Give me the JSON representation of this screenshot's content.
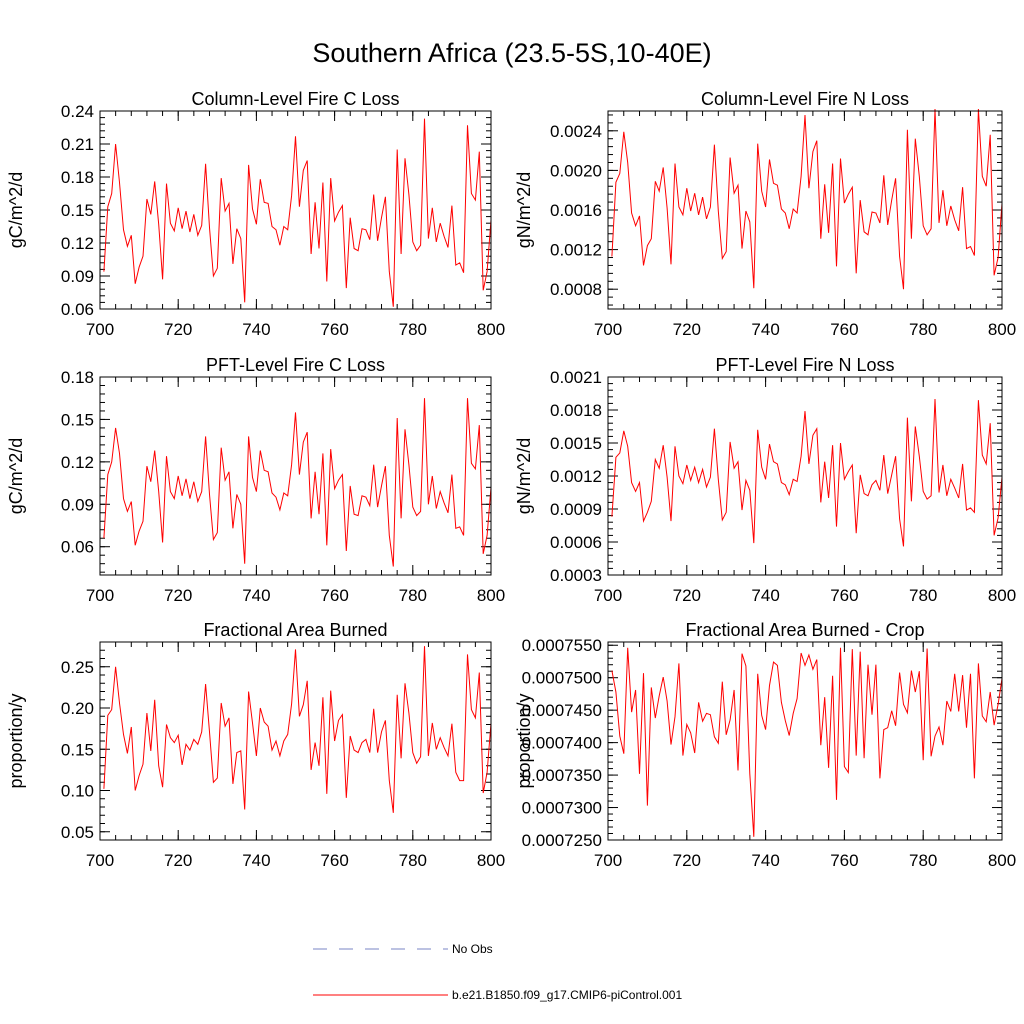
{
  "figure": {
    "title": "Southern Africa (23.5-5S,10-40E)",
    "colors": {
      "model": "#ff0000",
      "obs": "#7a86c6",
      "frame": "#000000"
    }
  },
  "chart_data": [
    {
      "type": "line",
      "title": "Column-Level Fire C Loss",
      "xlabel": "",
      "ylabel": "gC/m^2/d",
      "xlim": [
        700,
        800
      ],
      "ylim": [
        0.06,
        0.24
      ],
      "xticks": [
        700,
        720,
        740,
        760,
        780,
        800
      ],
      "xtick_labels": [
        "700",
        "720",
        "740",
        "760",
        "780",
        "800"
      ],
      "yticks": [
        0.06,
        0.09,
        0.12,
        0.15,
        0.18,
        0.21,
        0.24
      ],
      "ytick_labels": [
        "0.06",
        "0.09",
        "0.12",
        "0.15",
        "0.18",
        "0.21",
        "0.24"
      ],
      "x_start": 701,
      "x_step": 1,
      "series": [
        {
          "name": "b.e21.B1850.f09_g17.CMIP6-piControl.001",
          "values": [
            0.094,
            0.153,
            0.165,
            0.21,
            0.175,
            0.132,
            0.117,
            0.127,
            0.083,
            0.098,
            0.108,
            0.16,
            0.146,
            0.176,
            0.137,
            0.087,
            0.174,
            0.138,
            0.131,
            0.152,
            0.133,
            0.149,
            0.13,
            0.146,
            0.127,
            0.136,
            0.192,
            0.134,
            0.09,
            0.097,
            0.179,
            0.149,
            0.156,
            0.101,
            0.133,
            0.124,
            0.066,
            0.191,
            0.151,
            0.137,
            0.178,
            0.157,
            0.156,
            0.135,
            0.132,
            0.118,
            0.135,
            0.132,
            0.163,
            0.217,
            0.153,
            0.186,
            0.195,
            0.11,
            0.157,
            0.115,
            0.175,
            0.085,
            0.179,
            0.14,
            0.148,
            0.154,
            0.079,
            0.143,
            0.115,
            0.113,
            0.133,
            0.132,
            0.123,
            0.164,
            0.122,
            0.143,
            0.162,
            0.094,
            0.062,
            0.205,
            0.11,
            0.197,
            0.164,
            0.121,
            0.113,
            0.118,
            0.233,
            0.124,
            0.152,
            0.121,
            0.138,
            0.126,
            0.116,
            0.154,
            0.1,
            0.102,
            0.093,
            0.227,
            0.165,
            0.159,
            0.203,
            0.077,
            0.094,
            0.141
          ]
        }
      ]
    },
    {
      "type": "line",
      "title": "Column-Level Fire N Loss",
      "xlabel": "",
      "ylabel": "gN/m^2/d",
      "xlim": [
        700,
        800
      ],
      "ylim": [
        0.0006,
        0.0026
      ],
      "xticks": [
        700,
        720,
        740,
        760,
        780,
        800
      ],
      "xtick_labels": [
        "700",
        "720",
        "740",
        "760",
        "780",
        "800"
      ],
      "yticks": [
        0.0008,
        0.0012,
        0.0016,
        0.002,
        0.0024
      ],
      "ytick_labels": [
        "0.0008",
        "0.0012",
        "0.0016",
        "0.0020",
        "0.0024"
      ],
      "x_start": 701,
      "x_step": 1,
      "series": [
        {
          "name": "b.e21.B1850.f09_g17.CMIP6-piControl.001",
          "values": [
            0.00113,
            0.00188,
            0.00197,
            0.00239,
            0.00208,
            0.00157,
            0.00144,
            0.00154,
            0.00104,
            0.00124,
            0.00131,
            0.00189,
            0.00179,
            0.00203,
            0.00162,
            0.00105,
            0.00207,
            0.00163,
            0.00155,
            0.00182,
            0.00159,
            0.00177,
            0.00155,
            0.00173,
            0.00151,
            0.00163,
            0.00226,
            0.00159,
            0.00111,
            0.00118,
            0.00213,
            0.00177,
            0.00185,
            0.00121,
            0.00159,
            0.00148,
            0.00081,
            0.00227,
            0.00179,
            0.00163,
            0.00211,
            0.00187,
            0.00185,
            0.00161,
            0.00157,
            0.00141,
            0.00161,
            0.00157,
            0.00194,
            0.00256,
            0.00182,
            0.00219,
            0.0023,
            0.00131,
            0.00186,
            0.00137,
            0.00207,
            0.00103,
            0.00212,
            0.00167,
            0.00176,
            0.00183,
            0.00096,
            0.0017,
            0.00138,
            0.00135,
            0.00158,
            0.00157,
            0.00147,
            0.00195,
            0.00145,
            0.0017,
            0.00192,
            0.00113,
            0.0008,
            0.00241,
            0.00131,
            0.00232,
            0.00194,
            0.00144,
            0.00135,
            0.00141,
            0.00262,
            0.00147,
            0.0018,
            0.00144,
            0.00164,
            0.0015,
            0.00139,
            0.00183,
            0.00121,
            0.00123,
            0.00114,
            0.00262,
            0.00194,
            0.00184,
            0.00236,
            0.00094,
            0.00112,
            0.00167
          ]
        }
      ]
    },
    {
      "type": "line",
      "title": "PFT-Level Fire C Loss",
      "xlabel": "",
      "ylabel": "gC/m^2/d",
      "xlim": [
        700,
        800
      ],
      "ylim": [
        0.04,
        0.18
      ],
      "xticks": [
        700,
        720,
        740,
        760,
        780,
        800
      ],
      "xtick_labels": [
        "700",
        "720",
        "740",
        "760",
        "780",
        "800"
      ],
      "yticks": [
        0.06,
        0.09,
        0.12,
        0.15,
        0.18
      ],
      "ytick_labels": [
        "0.06",
        "0.09",
        "0.12",
        "0.15",
        "0.18"
      ],
      "x_start": 701,
      "x_step": 1,
      "series": [
        {
          "name": "b.e21.B1850.f09_g17.CMIP6-piControl.001",
          "values": [
            0.066,
            0.111,
            0.12,
            0.144,
            0.126,
            0.094,
            0.085,
            0.092,
            0.061,
            0.071,
            0.078,
            0.117,
            0.106,
            0.128,
            0.099,
            0.063,
            0.124,
            0.099,
            0.094,
            0.11,
            0.096,
            0.108,
            0.094,
            0.106,
            0.092,
            0.099,
            0.138,
            0.097,
            0.065,
            0.07,
            0.13,
            0.107,
            0.113,
            0.073,
            0.097,
            0.09,
            0.048,
            0.138,
            0.109,
            0.099,
            0.128,
            0.114,
            0.113,
            0.098,
            0.095,
            0.086,
            0.098,
            0.096,
            0.118,
            0.155,
            0.111,
            0.134,
            0.141,
            0.08,
            0.113,
            0.083,
            0.126,
            0.061,
            0.129,
            0.101,
            0.107,
            0.111,
            0.057,
            0.103,
            0.083,
            0.082,
            0.096,
            0.095,
            0.089,
            0.118,
            0.088,
            0.103,
            0.117,
            0.068,
            0.046,
            0.151,
            0.08,
            0.143,
            0.118,
            0.088,
            0.082,
            0.085,
            0.165,
            0.09,
            0.11,
            0.087,
            0.099,
            0.091,
            0.084,
            0.111,
            0.073,
            0.074,
            0.068,
            0.165,
            0.119,
            0.115,
            0.146,
            0.055,
            0.068,
            0.102
          ]
        }
      ]
    },
    {
      "type": "line",
      "title": "PFT-Level Fire N Loss",
      "xlabel": "",
      "ylabel": "gN/m^2/d",
      "xlim": [
        700,
        800
      ],
      "ylim": [
        0.0003,
        0.0021
      ],
      "xticks": [
        700,
        720,
        740,
        760,
        780,
        800
      ],
      "xtick_labels": [
        "700",
        "720",
        "740",
        "760",
        "780",
        "800"
      ],
      "yticks": [
        0.0003,
        0.0006,
        0.0009,
        0.0012,
        0.0015,
        0.0018,
        0.0021
      ],
      "ytick_labels": [
        "0.0003",
        "0.0006",
        "0.0009",
        "0.0012",
        "0.0015",
        "0.0018",
        "0.0021"
      ],
      "x_start": 701,
      "x_step": 1,
      "series": [
        {
          "name": "b.e21.B1850.f09_g17.CMIP6-piControl.001",
          "values": [
            0.00083,
            0.00137,
            0.00141,
            0.00161,
            0.00147,
            0.00114,
            0.00106,
            0.00114,
            0.00079,
            0.00087,
            0.00097,
            0.00135,
            0.00127,
            0.00148,
            0.00119,
            0.00079,
            0.00147,
            0.0012,
            0.00113,
            0.0013,
            0.00116,
            0.00128,
            0.00114,
            0.00126,
            0.0011,
            0.00119,
            0.00163,
            0.00117,
            0.0008,
            0.00087,
            0.00151,
            0.00127,
            0.00133,
            0.00089,
            0.00116,
            0.00107,
            0.00059,
            0.00162,
            0.00128,
            0.00117,
            0.00149,
            0.00133,
            0.00131,
            0.00114,
            0.00112,
            0.00103,
            0.00117,
            0.00115,
            0.00138,
            0.00179,
            0.00131,
            0.00157,
            0.00163,
            0.00096,
            0.00133,
            0.001,
            0.00148,
            0.00074,
            0.0015,
            0.00117,
            0.00124,
            0.0013,
            0.00068,
            0.00121,
            0.00104,
            0.00102,
            0.00112,
            0.00116,
            0.00107,
            0.00139,
            0.00104,
            0.00121,
            0.00138,
            0.00081,
            0.00056,
            0.00173,
            0.00097,
            0.00165,
            0.00138,
            0.00106,
            0.00099,
            0.00102,
            0.0019,
            0.00105,
            0.0013,
            0.00102,
            0.00117,
            0.00109,
            0.001,
            0.00131,
            0.00089,
            0.00091,
            0.00087,
            0.00189,
            0.00139,
            0.00131,
            0.00168,
            0.00066,
            0.00082,
            0.00119
          ]
        }
      ]
    },
    {
      "type": "line",
      "title": "Fractional Area Burned",
      "xlabel": "",
      "ylabel": "proportion/y",
      "xlim": [
        700,
        800
      ],
      "ylim": [
        0.04,
        0.28
      ],
      "xticks": [
        700,
        720,
        740,
        760,
        780,
        800
      ],
      "xtick_labels": [
        "700",
        "720",
        "740",
        "760",
        "780",
        "800"
      ],
      "yticks": [
        0.05,
        0.1,
        0.15,
        0.2,
        0.25
      ],
      "ytick_labels": [
        "0.05",
        "0.10",
        "0.15",
        "0.20",
        "0.25"
      ],
      "x_start": 701,
      "x_step": 1,
      "series": [
        {
          "name": "b.e21.B1850.f09_g17.CMIP6-piControl.001",
          "values": [
            0.102,
            0.191,
            0.198,
            0.25,
            0.206,
            0.168,
            0.145,
            0.177,
            0.1,
            0.118,
            0.132,
            0.194,
            0.148,
            0.21,
            0.13,
            0.104,
            0.18,
            0.164,
            0.158,
            0.167,
            0.131,
            0.156,
            0.149,
            0.162,
            0.156,
            0.171,
            0.229,
            0.171,
            0.11,
            0.115,
            0.206,
            0.178,
            0.188,
            0.108,
            0.146,
            0.148,
            0.077,
            0.22,
            0.182,
            0.142,
            0.2,
            0.183,
            0.178,
            0.149,
            0.16,
            0.142,
            0.16,
            0.168,
            0.205,
            0.271,
            0.19,
            0.204,
            0.233,
            0.125,
            0.158,
            0.13,
            0.213,
            0.096,
            0.221,
            0.16,
            0.185,
            0.192,
            0.091,
            0.166,
            0.149,
            0.146,
            0.158,
            0.162,
            0.146,
            0.199,
            0.146,
            0.171,
            0.185,
            0.112,
            0.073,
            0.216,
            0.139,
            0.23,
            0.194,
            0.146,
            0.133,
            0.141,
            0.275,
            0.142,
            0.182,
            0.15,
            0.164,
            0.152,
            0.142,
            0.181,
            0.122,
            0.112,
            0.112,
            0.265,
            0.198,
            0.188,
            0.243,
            0.097,
            0.122,
            0.182
          ]
        }
      ]
    },
    {
      "type": "line",
      "title": "Fractional Area Burned - Crop",
      "xlabel": "",
      "ylabel": "proportion/y",
      "xlim": [
        700,
        800
      ],
      "ylim": [
        0.000725,
        0.0007555
      ],
      "xticks": [
        700,
        720,
        740,
        760,
        780,
        800
      ],
      "xtick_labels": [
        "700",
        "720",
        "740",
        "760",
        "780",
        "800"
      ],
      "yticks": [
        0.000725,
        0.00073,
        0.000735,
        0.00074,
        0.000745,
        0.00075,
        0.000755
      ],
      "ytick_labels": [
        "0.0007250",
        "0.0007300",
        "0.0007350",
        "0.0007400",
        "0.0007450",
        "0.0007500",
        "0.0007550"
      ],
      "x_start": 701,
      "x_step": 1,
      "series": [
        {
          "name": "b.e21.B1850.f09_g17.CMIP6-piControl.001",
          "values": [
            0.0007511,
            0.0007478,
            0.000741,
            0.0007383,
            0.0007546,
            0.0007447,
            0.0007481,
            0.0007352,
            0.0007507,
            0.0007303,
            0.0007485,
            0.0007438,
            0.0007472,
            0.0007501,
            0.0007464,
            0.0007397,
            0.000744,
            0.0007522,
            0.000738,
            0.0007428,
            0.0007415,
            0.0007384,
            0.0007462,
            0.0007433,
            0.0007445,
            0.0007443,
            0.0007409,
            0.0007399,
            0.0007494,
            0.0007412,
            0.0007435,
            0.0007481,
            0.0007357,
            0.0007537,
            0.0007518,
            0.0007352,
            0.0007255,
            0.0007506,
            0.0007442,
            0.000742,
            0.0007488,
            0.0007524,
            0.0007519,
            0.0007462,
            0.0007434,
            0.0007411,
            0.0007445,
            0.0007468,
            0.0007538,
            0.0007519,
            0.0007535,
            0.0007513,
            0.0007528,
            0.0007396,
            0.000747,
            0.0007361,
            0.0007503,
            0.0007312,
            0.0007546,
            0.0007363,
            0.0007354,
            0.0007544,
            0.000738,
            0.000754,
            0.0007376,
            0.000752,
            0.0007443,
            0.000752,
            0.0007345,
            0.000742,
            0.0007423,
            0.0007449,
            0.0007426,
            0.0007508,
            0.0007459,
            0.0007446,
            0.0007511,
            0.0007478,
            0.000751,
            0.0007373,
            0.0007545,
            0.0007379,
            0.000741,
            0.0007424,
            0.0007396,
            0.0007464,
            0.0007448,
            0.0007506,
            0.0007448,
            0.0007504,
            0.0007423,
            0.0007506,
            0.0007345,
            0.0007522,
            0.0007441,
            0.0007432,
            0.0007478,
            0.0007427,
            0.0007459,
            0.0007499
          ]
        }
      ]
    }
  ],
  "legend": {
    "items": [
      {
        "label": "No Obs",
        "style": "dashed",
        "color": "#7a86c6"
      },
      {
        "label": "b.e21.B1850.f09_g17.CMIP6-piControl.001",
        "style": "solid",
        "color": "#ff0000"
      }
    ]
  }
}
